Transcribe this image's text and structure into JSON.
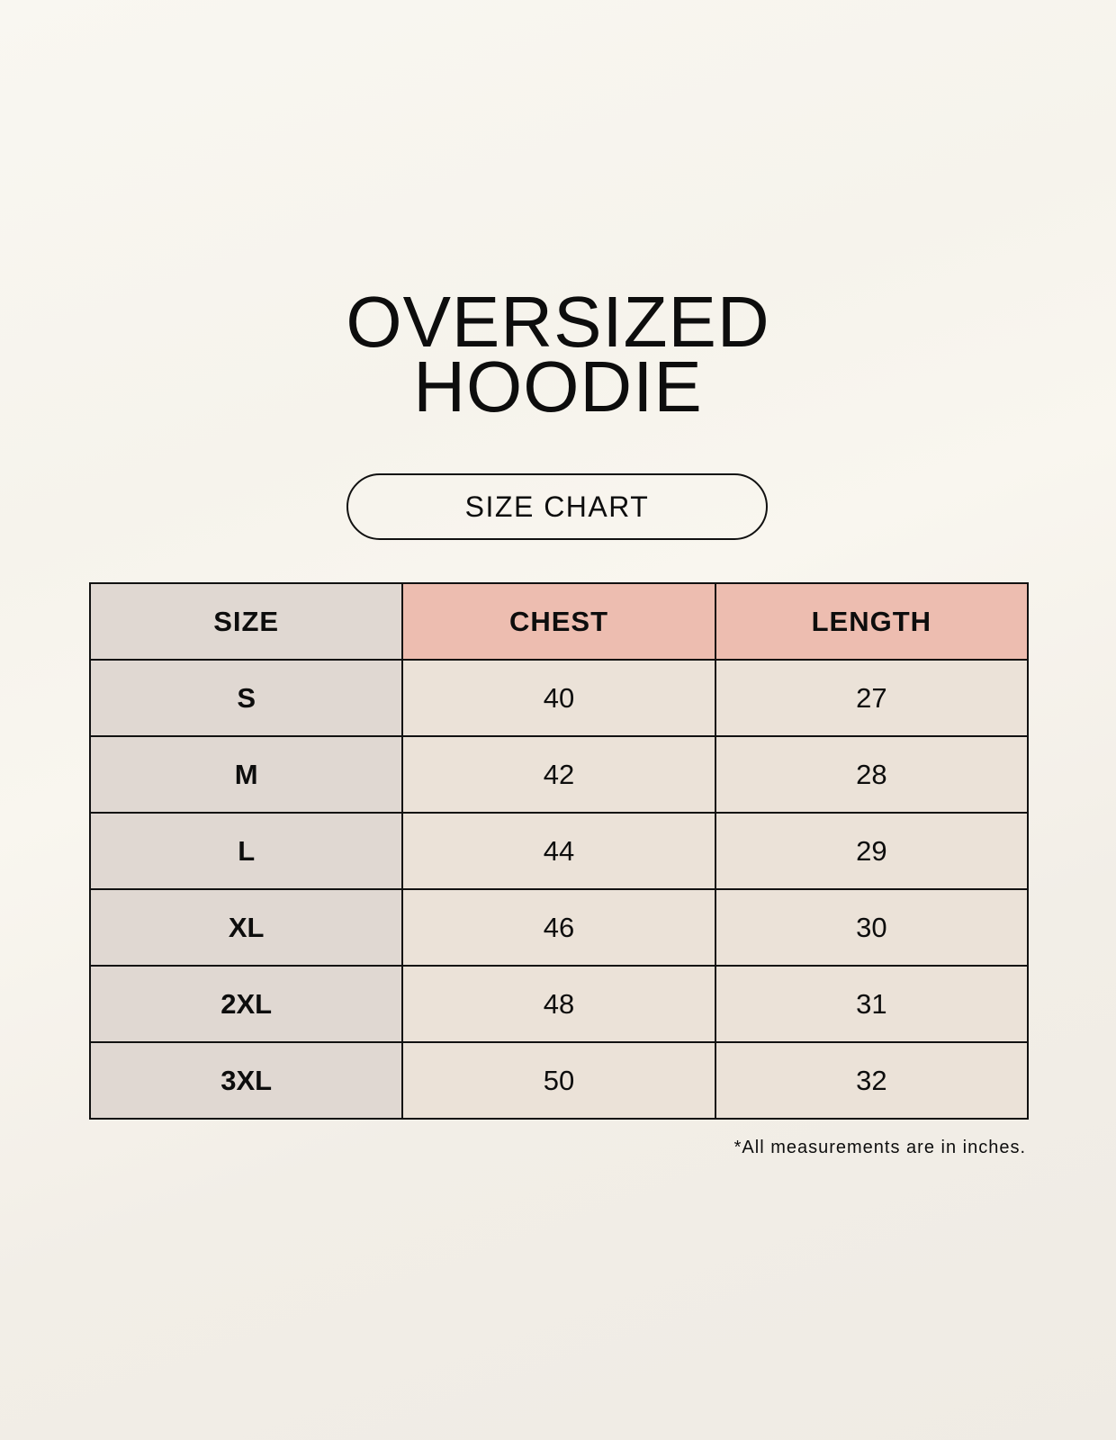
{
  "title_line1": "OVERSIZED",
  "title_line2": "HOODIE",
  "subtitle": "SIZE CHART",
  "table": {
    "headers": [
      "SIZE",
      "CHEST",
      "LENGTH"
    ],
    "rows": [
      [
        "S",
        "40",
        "27"
      ],
      [
        "M",
        "42",
        "28"
      ],
      [
        "L",
        "44",
        "29"
      ],
      [
        "XL",
        "46",
        "30"
      ],
      [
        "2XL",
        "48",
        "31"
      ],
      [
        "3XL",
        "50",
        "32"
      ]
    ]
  },
  "footnote": "*All measurements are in inches.",
  "colors": {
    "size_column": "#e0d8d2",
    "header_accent": "#edbdb0",
    "value_cells": "#ebe2d8"
  }
}
